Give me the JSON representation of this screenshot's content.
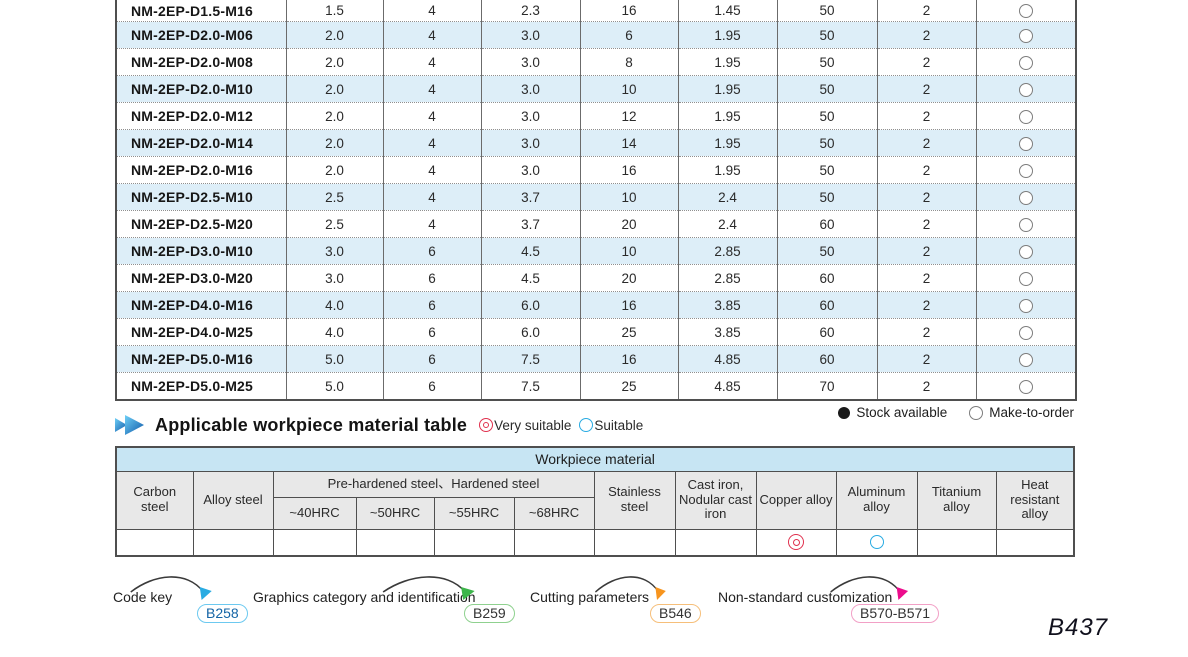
{
  "page": {
    "number": "B437"
  },
  "main_table": {
    "rows": [
      {
        "model": "NM-2EP-D1.5-M16",
        "values": [
          "1.5",
          "4",
          "2.3",
          "16",
          "1.45",
          "50",
          "2"
        ],
        "order": "make_to_order"
      },
      {
        "model": "NM-2EP-D2.0-M06",
        "values": [
          "2.0",
          "4",
          "3.0",
          "6",
          "1.95",
          "50",
          "2"
        ],
        "order": "make_to_order"
      },
      {
        "model": "NM-2EP-D2.0-M08",
        "values": [
          "2.0",
          "4",
          "3.0",
          "8",
          "1.95",
          "50",
          "2"
        ],
        "order": "make_to_order"
      },
      {
        "model": "NM-2EP-D2.0-M10",
        "values": [
          "2.0",
          "4",
          "3.0",
          "10",
          "1.95",
          "50",
          "2"
        ],
        "order": "make_to_order"
      },
      {
        "model": "NM-2EP-D2.0-M12",
        "values": [
          "2.0",
          "4",
          "3.0",
          "12",
          "1.95",
          "50",
          "2"
        ],
        "order": "make_to_order"
      },
      {
        "model": "NM-2EP-D2.0-M14",
        "values": [
          "2.0",
          "4",
          "3.0",
          "14",
          "1.95",
          "50",
          "2"
        ],
        "order": "make_to_order"
      },
      {
        "model": "NM-2EP-D2.0-M16",
        "values": [
          "2.0",
          "4",
          "3.0",
          "16",
          "1.95",
          "50",
          "2"
        ],
        "order": "make_to_order"
      },
      {
        "model": "NM-2EP-D2.5-M10",
        "values": [
          "2.5",
          "4",
          "3.7",
          "10",
          "2.4",
          "50",
          "2"
        ],
        "order": "make_to_order"
      },
      {
        "model": "NM-2EP-D2.5-M20",
        "values": [
          "2.5",
          "4",
          "3.7",
          "20",
          "2.4",
          "60",
          "2"
        ],
        "order": "make_to_order"
      },
      {
        "model": "NM-2EP-D3.0-M10",
        "values": [
          "3.0",
          "6",
          "4.5",
          "10",
          "2.85",
          "50",
          "2"
        ],
        "order": "make_to_order"
      },
      {
        "model": "NM-2EP-D3.0-M20",
        "values": [
          "3.0",
          "6",
          "4.5",
          "20",
          "2.85",
          "60",
          "2"
        ],
        "order": "make_to_order"
      },
      {
        "model": "NM-2EP-D4.0-M16",
        "values": [
          "4.0",
          "6",
          "6.0",
          "16",
          "3.85",
          "60",
          "2"
        ],
        "order": "make_to_order"
      },
      {
        "model": "NM-2EP-D4.0-M25",
        "values": [
          "4.0",
          "6",
          "6.0",
          "25",
          "3.85",
          "60",
          "2"
        ],
        "order": "make_to_order"
      },
      {
        "model": "NM-2EP-D5.0-M16",
        "values": [
          "5.0",
          "6",
          "7.5",
          "16",
          "4.85",
          "60",
          "2"
        ],
        "order": "make_to_order"
      },
      {
        "model": "NM-2EP-D5.0-M25",
        "values": [
          "5.0",
          "6",
          "7.5",
          "25",
          "4.85",
          "70",
          "2"
        ],
        "order": "make_to_order"
      }
    ]
  },
  "section": {
    "title": "Applicable workpiece material table",
    "legend": {
      "very_suitable": "Very suitable",
      "suitable": "Suitable"
    },
    "stock_legend": {
      "stock_available": "Stock available",
      "make_to_order": "Make-to-order"
    }
  },
  "workpiece_table": {
    "banner": "Workpiece material",
    "headers": {
      "carbon": "Carbon steel",
      "alloy": "Alloy steel",
      "prehardened": "Pre-hardened steel、Hardened steel",
      "hrc40": "~40HRC",
      "hrc50": "~50HRC",
      "hrc55": "~55HRC",
      "hrc68": "~68HRC",
      "stainless": "Stainless steel",
      "cast_iron": "Cast iron, Nodular cast iron",
      "copper": "Copper alloy",
      "aluminum": "Aluminum alloy",
      "titanium": "Titanium alloy",
      "heat": "Heat resistant alloy"
    },
    "rating_cells": [
      "",
      "",
      "",
      "",
      "",
      "",
      "",
      "",
      "very_suitable",
      "suitable",
      "",
      ""
    ]
  },
  "footer": {
    "links": [
      {
        "label": "Code key",
        "page": "B258",
        "accent": "#29abe2"
      },
      {
        "label": "Graphics category and identification",
        "page": "B259",
        "accent": "#3cb54a"
      },
      {
        "label": "Cutting parameters",
        "page": "B546",
        "accent": "#f7941d"
      },
      {
        "label": "Non-standard customization",
        "page": "B570-B571",
        "accent": "#ec0c8c"
      }
    ]
  },
  "colors": {
    "row_alt": "#ddeef8",
    "banner_blue": "#c7e5f3",
    "header_gray": "#e8e8e8",
    "very_suitable_red": "#e0314e",
    "suitable_blue": "#29abe2",
    "chevron_blue_light": "#6fd0f7",
    "chevron_blue_dark": "#0e57a8"
  }
}
